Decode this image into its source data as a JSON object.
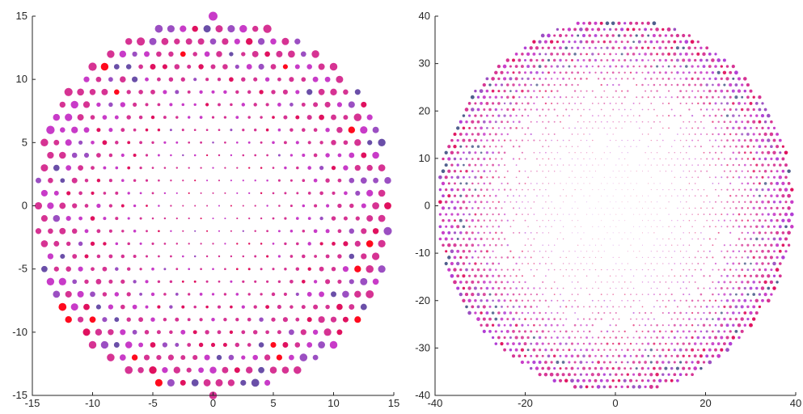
{
  "chart_data": [
    {
      "type": "scatter",
      "title": "",
      "xlabel": "",
      "ylabel": "",
      "xlim": [
        -15,
        15
      ],
      "ylim": [
        -15,
        15
      ],
      "xticks": [
        "-15",
        "-10",
        "-5",
        "0",
        "5",
        "10",
        "15"
      ],
      "yticks": [
        "15",
        "10",
        "5",
        "0",
        "-5",
        "-10",
        "-15"
      ],
      "grid": false,
      "legend": "none",
      "point_spacing": 1.0,
      "disk_radius": 15,
      "colors": [
        "#d63393",
        "#c83bc8",
        "#9b4fc2",
        "#6a4fa8",
        "#e0115f",
        "#ff0a1e"
      ],
      "size_range": [
        2,
        11
      ],
      "points_description_note": ""
    },
    {
      "type": "scatter",
      "title": "",
      "xlabel": "",
      "ylabel": "",
      "xlim": [
        -40,
        40
      ],
      "ylim": [
        -40,
        40
      ],
      "xticks": [
        "-40",
        "-20",
        "0",
        "20",
        "40"
      ],
      "yticks": [
        "40",
        "30",
        "20",
        "10",
        "0",
        "-10",
        "-20",
        "-30",
        "-40"
      ],
      "grid": false,
      "legend": "none",
      "point_spacing": 1.3,
      "disk_radius": 39.5,
      "colors": [
        "#d63393",
        "#c83bc8",
        "#b03cd4",
        "#9b4fc2",
        "#e0115f",
        "#4e5d8c"
      ],
      "size_range": [
        1,
        5
      ]
    }
  ]
}
